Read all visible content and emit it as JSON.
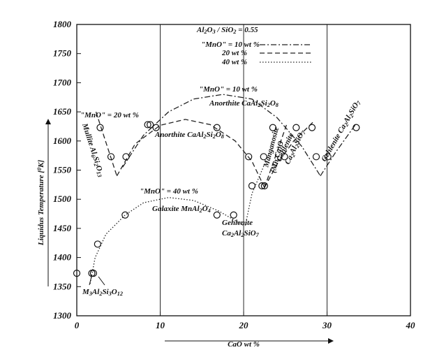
{
  "chart_data": {
    "type": "line",
    "xlabel": "CaO wt %",
    "ylabel": "Liquidus Temperature [0K]",
    "xlim": [
      0,
      40
    ],
    "xticks": [
      0,
      10,
      20,
      30,
      40
    ],
    "ylim": [
      1300,
      1800
    ],
    "yticks": [
      1300,
      1350,
      1400,
      1450,
      1500,
      1550,
      1600,
      1650,
      1700,
      1750,
      1800
    ],
    "grid": "x",
    "legend": "top",
    "legend_title": "Al2O3 / SiO2 = 0.55",
    "series": [
      {
        "name": "\"MnO\" = 10 wt %",
        "color": "#222222",
        "dash": "dash-dot",
        "x": [
          5.5,
          8,
          11,
          14,
          17.5,
          21,
          24,
          27,
          29.2,
          null,
          29.2,
          31,
          33.5
        ],
        "values": [
          1555,
          1610,
          1650,
          1672,
          1680,
          1672,
          1640,
          1590,
          1540,
          null,
          1540,
          1580,
          1630
        ]
      },
      {
        "name": "20 wt %",
        "color": "#222222",
        "dash": "dashed",
        "x": [
          2.3,
          4.8,
          null,
          4.8,
          7,
          10,
          13,
          16,
          19,
          21,
          22.5,
          null,
          22.5,
          25.2,
          null,
          22.5,
          24,
          26,
          28.5
        ],
        "values": [
          1650,
          1540,
          null,
          1540,
          1595,
          1627,
          1637,
          1628,
          1600,
          1565,
          1520,
          null,
          1520,
          1630,
          null,
          1520,
          1560,
          1600,
          1635
        ]
      },
      {
        "name": "40 wt %",
        "color": "#222222",
        "dash": "dotted",
        "x": [
          1.6,
          2.2,
          3.5,
          5.8,
          8,
          11,
          14,
          17,
          20,
          null,
          20.2,
          21,
          22.5
        ],
        "values": [
          1355,
          1400,
          1440,
          1473,
          1494,
          1503,
          1498,
          1480,
          1455,
          null,
          1455,
          1510,
          1560
        ]
      }
    ],
    "markers": {
      "x": [
        0,
        1.8,
        2.0,
        2.5,
        5.8,
        16.8,
        18.8,
        21,
        22.2,
        22.5,
        2.8,
        4.1,
        5.9,
        8.5,
        8.8,
        9.5,
        16.8,
        20.6,
        22.4,
        23.5,
        24.9,
        26.3,
        28.2,
        28.7,
        30.1,
        33.5
      ],
      "values": [
        1373,
        1373,
        1373,
        1423,
        1473,
        1473,
        1473,
        1523,
        1523,
        1523,
        1623,
        1573,
        1573,
        1628,
        1628,
        1623,
        1623,
        1573,
        1573,
        1623,
        1573,
        1623,
        1623,
        1573,
        1573,
        1623
      ]
    },
    "annotations": [
      "\"MnO\" = 10 wt %",
      "Anorthite CaAl2Si2O8",
      "\"MnO\" = 20 wt %",
      "Mullite Al6Si2O13",
      "Anorthite CaAl2Si2O8",
      "Manganosite",
      "(Mn,Ca)O",
      "Gehlenite",
      "Ca2Al2SiO7",
      "Gehlenite Ca2Al2SiO7",
      "\"MnO\" = 40 wt %",
      "Galaxite MnAl2O4",
      "Gehlenite",
      "Ca2Al2SiO7",
      "M3Al2Si3O12"
    ]
  }
}
